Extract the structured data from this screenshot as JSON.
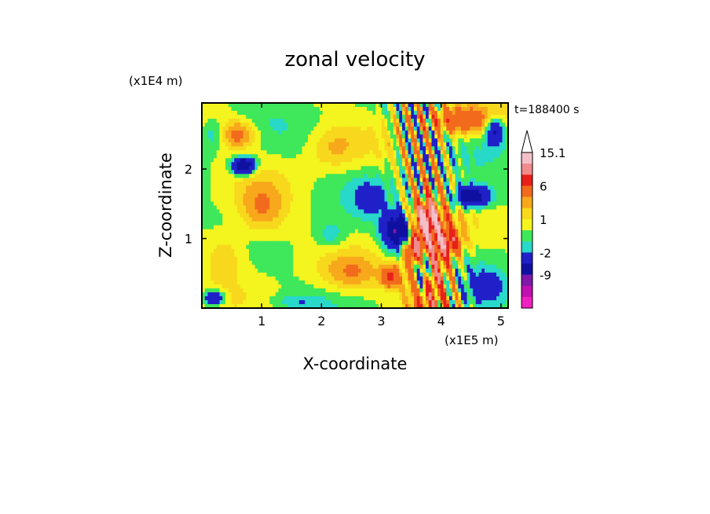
{
  "chart_data": {
    "type": "heatmap",
    "title": "zonal velocity",
    "xlabel": "X-coordinate",
    "ylabel": "Z-coordinate",
    "x_unit": "(x1E5 m)",
    "y_unit": "(x1E4 m)",
    "time_label": "t=188400 s",
    "xlim": [
      0.0,
      5.12
    ],
    "ylim": [
      0.0,
      2.95
    ],
    "x_ticks": [
      1,
      2,
      3,
      4,
      5
    ],
    "y_ticks": [
      1,
      2
    ],
    "colorbar": {
      "labels": [
        "15.1",
        "6",
        "1",
        "-2",
        "-9"
      ],
      "levels": [
        {
          "upper": 15.1,
          "color": "#f4c0c8"
        },
        {
          "upper": 12.0,
          "color": "#f08c8c"
        },
        {
          "upper": 9.0,
          "color": "#e8201a"
        },
        {
          "upper": 6.0,
          "color": "#f26a1c"
        },
        {
          "upper": 3.0,
          "color": "#f7a81b"
        },
        {
          "upper": 2.0,
          "color": "#f8d81c"
        },
        {
          "upper": 1.0,
          "color": "#f4f41e"
        },
        {
          "upper": 0.0,
          "color": "#3ee85a"
        },
        {
          "upper": -1.0,
          "color": "#28d8c8"
        },
        {
          "upper": -2.0,
          "color": "#2020c8"
        },
        {
          "upper": -5.0,
          "color": "#1010a0"
        },
        {
          "upper": -9.0,
          "color": "#8018a8"
        },
        {
          "upper": -12.0,
          "color": "#c010b0"
        },
        {
          "upper": -15.0,
          "color": "#f020c0"
        }
      ]
    },
    "features": [
      {
        "x": 3.8,
        "z": 0.6,
        "amp": 8,
        "sx": 0.35,
        "sz": 0.9
      },
      {
        "x": 3.3,
        "z": 1.1,
        "amp": -10,
        "sx": 0.25,
        "sz": 0.25
      },
      {
        "x": 3.75,
        "z": 1.3,
        "amp": 9,
        "sx": 0.2,
        "sz": 0.2
      },
      {
        "x": 3.55,
        "z": 0.9,
        "amp": 7,
        "sx": 0.18,
        "sz": 0.2
      },
      {
        "x": 3.7,
        "z": 0.55,
        "amp": -9,
        "sx": 0.12,
        "sz": 0.3
      },
      {
        "x": 3.15,
        "z": 0.45,
        "amp": 6,
        "sx": 0.15,
        "sz": 0.15
      },
      {
        "x": 0.7,
        "z": 2.05,
        "amp": -9,
        "sx": 0.18,
        "sz": 0.12
      },
      {
        "x": 0.6,
        "z": 2.5,
        "amp": 4,
        "sx": 0.3,
        "sz": 0.2
      },
      {
        "x": 2.15,
        "z": 1.05,
        "amp": -2,
        "sx": 0.25,
        "sz": 0.2
      },
      {
        "x": 1.0,
        "z": 1.4,
        "amp": 3,
        "sx": 0.4,
        "sz": 0.4
      },
      {
        "x": 0.2,
        "z": 2.5,
        "amp": -2,
        "sx": 0.2,
        "sz": 0.2
      },
      {
        "x": 4.5,
        "z": 1.6,
        "amp": -8,
        "sx": 0.3,
        "sz": 0.15
      },
      {
        "x": 4.9,
        "z": 2.55,
        "amp": -6,
        "sx": 0.15,
        "sz": 0.2
      },
      {
        "x": 4.3,
        "z": 2.7,
        "amp": 5,
        "sx": 0.6,
        "sz": 0.2
      },
      {
        "x": 2.5,
        "z": 0.5,
        "amp": 2.5,
        "sx": 0.5,
        "sz": 0.25
      },
      {
        "x": 1.6,
        "z": 0.1,
        "amp": -1.5,
        "sx": 0.4,
        "sz": 0.1
      },
      {
        "x": 0.2,
        "z": 0.15,
        "amp": -6,
        "sx": 0.15,
        "sz": 0.1
      },
      {
        "x": 4.8,
        "z": 0.3,
        "amp": -3,
        "sx": 0.4,
        "sz": 0.3
      },
      {
        "x": 2.2,
        "z": 2.3,
        "amp": 2,
        "sx": 0.4,
        "sz": 0.3
      },
      {
        "x": 4.1,
        "z": 0.95,
        "amp": 6,
        "sx": 0.25,
        "sz": 0.2
      },
      {
        "x": 0.4,
        "z": 0.8,
        "amp": 2,
        "sx": 0.35,
        "sz": 0.35
      },
      {
        "x": 2.8,
        "z": 1.6,
        "amp": -2,
        "sx": 0.3,
        "sz": 0.3
      }
    ]
  }
}
